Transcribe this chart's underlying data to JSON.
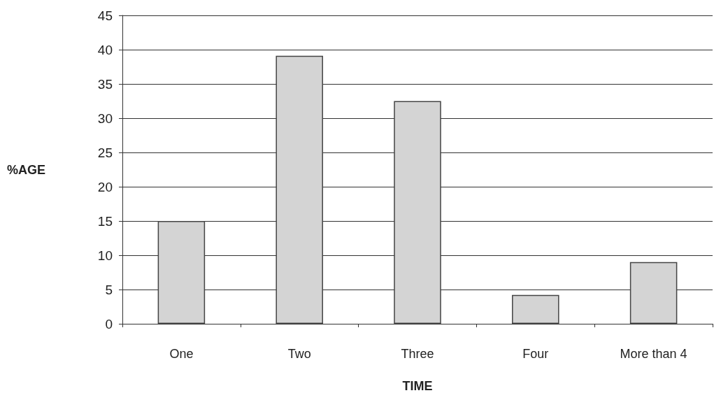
{
  "chart_data": {
    "type": "bar",
    "xlabel": "TIME",
    "ylabel": "%AGE",
    "categories": [
      "One",
      "Two",
      "Three",
      "Four",
      "More than 4"
    ],
    "values": [
      15,
      39.1,
      32.5,
      4.2,
      9
    ],
    "color": "#d4d4d4",
    "ylim": [
      0,
      45
    ],
    "yticks": [
      0,
      5,
      10,
      15,
      20,
      25,
      30,
      35,
      40,
      45
    ],
    "grid": "y"
  }
}
